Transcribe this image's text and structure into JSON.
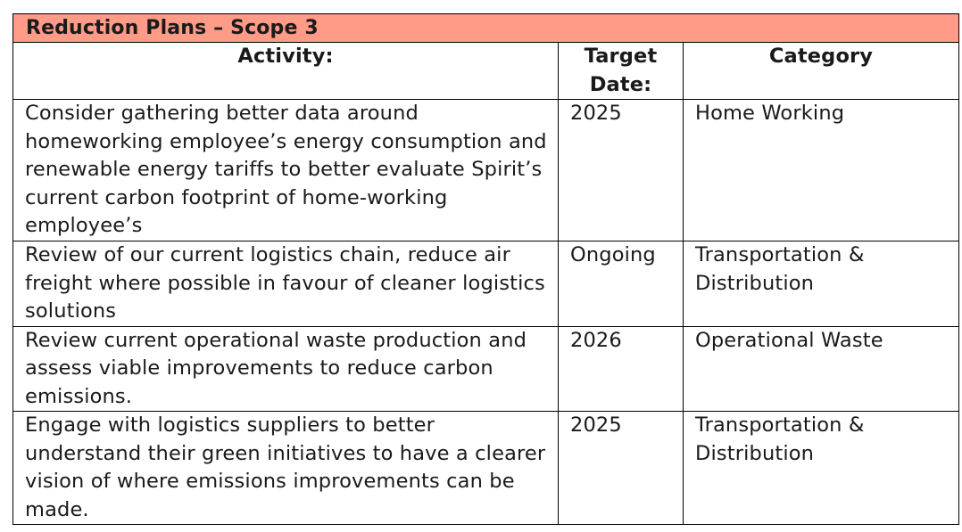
{
  "table": {
    "title": "Reduction Plans – Scope 3",
    "header_fill": "#ff9b86",
    "columns": [
      "Activity:",
      "Target Date:",
      "Category"
    ],
    "rows": [
      {
        "activity": "Consider gathering better data around homeworking employee’s energy consumption and renewable energy tariffs to better evaluate Spirit’s current carbon footprint of home-working employee’s",
        "target_date": "2025",
        "category": "Home Working"
      },
      {
        "activity": "Review of our current logistics chain, reduce air freight where possible in favour of cleaner logistics solutions",
        "target_date": "Ongoing",
        "category": "Transportation & Distribution"
      },
      {
        "activity": "Review current operational waste production and assess viable improvements to reduce carbon emissions.",
        "target_date": "2026",
        "category": "Operational Waste"
      },
      {
        "activity": "Engage with logistics suppliers to better understand their green initiatives to have a clearer vision of where emissions improvements can be made.",
        "target_date": "2025",
        "category": "Transportation & Distribution"
      }
    ]
  }
}
